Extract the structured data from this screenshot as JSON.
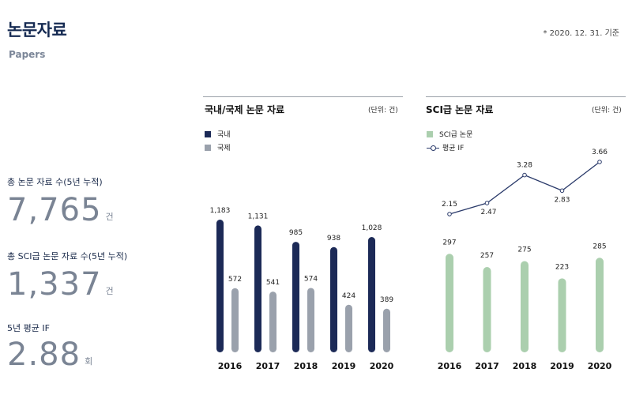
{
  "header": {
    "title": "논문자료",
    "subtitle": "Papers",
    "basis_date": "* 2020. 12. 31. 기준"
  },
  "stats": [
    {
      "label": "총 논문 자료 수(5년 누적)",
      "value": "7,765",
      "unit": "건"
    },
    {
      "label": "총 SCI급 논문 자료 수(5년 누적)",
      "value": "1,337",
      "unit": "건"
    },
    {
      "label": "5년 평균 IF",
      "value": "2.88",
      "unit": "회"
    }
  ],
  "colors": {
    "domestic": "#1c2a57",
    "international": "#9aa1ac",
    "sci": "#abcfae",
    "if_line": "#2a3a6a"
  },
  "chart_data": [
    {
      "type": "bar",
      "title": "국내/국제 논문 자료",
      "unit_note": "(단위: 건)",
      "categories": [
        "2016",
        "2017",
        "2018",
        "2019",
        "2020"
      ],
      "series": [
        {
          "name": "국내",
          "values": [
            1183,
            1131,
            985,
            938,
            1028
          ]
        },
        {
          "name": "국제",
          "values": [
            572,
            541,
            574,
            424,
            389
          ]
        }
      ],
      "ylim": [
        0,
        1183
      ],
      "grid": false,
      "legend_position": "top-left"
    },
    {
      "type": "bar",
      "title": "SCI급 논문 자료",
      "unit_note": "(단위: 건)",
      "categories": [
        "2016",
        "2017",
        "2018",
        "2019",
        "2020"
      ],
      "series": [
        {
          "name": "SCI급 논문",
          "type": "bar",
          "values": [
            297,
            257,
            275,
            223,
            285
          ]
        },
        {
          "name": "평균 IF",
          "type": "line",
          "values": [
            2.15,
            2.47,
            3.28,
            2.83,
            3.66
          ]
        }
      ],
      "bar_ylim": [
        0,
        300
      ],
      "line_ylim": [
        2.0,
        3.7
      ],
      "grid": false,
      "legend_position": "top-left"
    }
  ]
}
